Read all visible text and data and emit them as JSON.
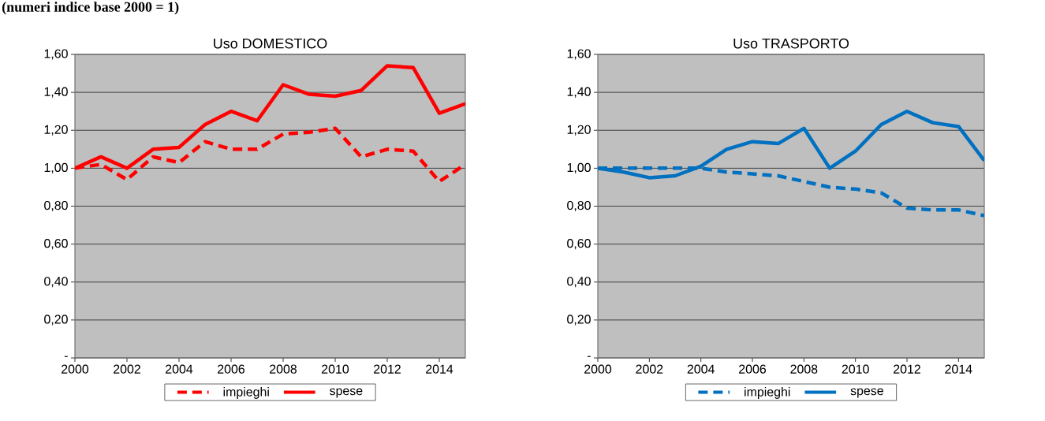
{
  "chart_data": [
    {
      "type": "line",
      "title": "Uso DOMESTICO",
      "annotations": [
        "(numeri indice base 2000 = 1)"
      ],
      "x": [
        2000,
        2001,
        2002,
        2003,
        2004,
        2005,
        2006,
        2007,
        2008,
        2009,
        2010,
        2011,
        2012,
        2013,
        2014,
        2015
      ],
      "series": [
        {
          "name": "impieghi",
          "color": "#ff0000",
          "line_style": "dashed",
          "values": [
            1.0,
            1.02,
            0.94,
            1.06,
            1.03,
            1.14,
            1.1,
            1.1,
            1.18,
            1.19,
            1.21,
            1.06,
            1.1,
            1.09,
            0.93,
            1.02
          ]
        },
        {
          "name": "spese",
          "color": "#ff0000",
          "line_style": "solid",
          "values": [
            1.0,
            1.06,
            1.0,
            1.1,
            1.11,
            1.23,
            1.3,
            1.25,
            1.44,
            1.39,
            1.38,
            1.41,
            1.54,
            1.53,
            1.29,
            1.34
          ]
        }
      ],
      "xlim": [
        2000,
        2015
      ],
      "xticks": [
        2000,
        2002,
        2004,
        2006,
        2008,
        2010,
        2012,
        2014
      ],
      "ylim": [
        0,
        1.6
      ],
      "yticks": [
        {
          "value": 0,
          "label": "-"
        },
        {
          "value": 0.2,
          "label": "0,20"
        },
        {
          "value": 0.4,
          "label": "0,40"
        },
        {
          "value": 0.6,
          "label": "0,60"
        },
        {
          "value": 0.8,
          "label": "0,80"
        },
        {
          "value": 1.0,
          "label": "1,00"
        },
        {
          "value": 1.2,
          "label": "1,20"
        },
        {
          "value": 1.4,
          "label": "1,40"
        },
        {
          "value": 1.6,
          "label": "1,60"
        }
      ],
      "grid": "y",
      "legend": "bottom",
      "marker": "none"
    },
    {
      "type": "line",
      "title": "Uso TRASPORTO",
      "x": [
        2000,
        2001,
        2002,
        2003,
        2004,
        2005,
        2006,
        2007,
        2008,
        2009,
        2010,
        2011,
        2012,
        2013,
        2014,
        2015
      ],
      "series": [
        {
          "name": "impieghi",
          "color": "#0070c0",
          "line_style": "dashed",
          "values": [
            1.0,
            1.0,
            1.0,
            1.0,
            1.0,
            0.98,
            0.97,
            0.96,
            0.93,
            0.9,
            0.89,
            0.87,
            0.79,
            0.78,
            0.78,
            0.75
          ]
        },
        {
          "name": "spese",
          "color": "#0070c0",
          "line_style": "solid",
          "values": [
            1.0,
            0.98,
            0.95,
            0.96,
            1.01,
            1.1,
            1.14,
            1.13,
            1.21,
            1.0,
            1.09,
            1.23,
            1.3,
            1.24,
            1.22,
            1.04
          ]
        }
      ],
      "xlim": [
        2000,
        2015
      ],
      "xticks": [
        2000,
        2002,
        2004,
        2006,
        2008,
        2010,
        2012,
        2014
      ],
      "ylim": [
        0,
        1.6
      ],
      "yticks": [
        {
          "value": 0,
          "label": "-"
        },
        {
          "value": 0.2,
          "label": "0,20"
        },
        {
          "value": 0.4,
          "label": "0,40"
        },
        {
          "value": 0.6,
          "label": "0,60"
        },
        {
          "value": 0.8,
          "label": "0,80"
        },
        {
          "value": 1.0,
          "label": "1,00"
        },
        {
          "value": 1.2,
          "label": "1,20"
        },
        {
          "value": 1.4,
          "label": "1,40"
        },
        {
          "value": 1.6,
          "label": "1,60"
        }
      ],
      "grid": "y",
      "legend": "bottom",
      "marker": "none"
    }
  ]
}
